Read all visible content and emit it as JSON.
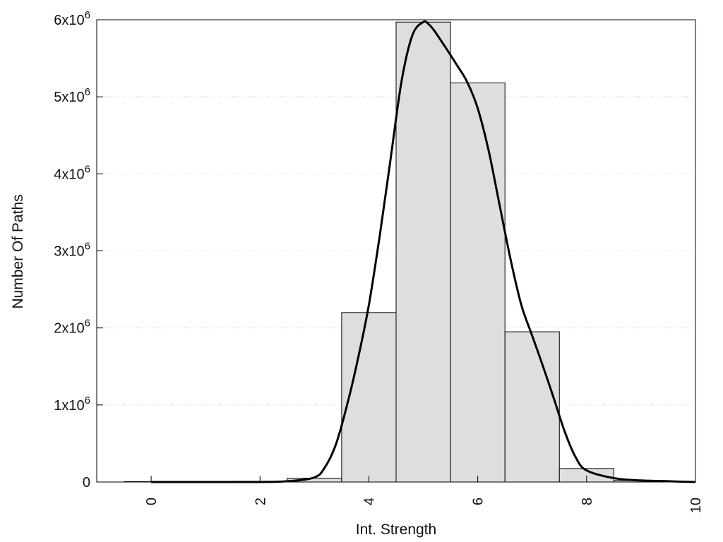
{
  "chart_data": {
    "type": "bar",
    "title": "",
    "xlabel": "Int. Strength",
    "ylabel": "Number Of Paths",
    "xlim": [
      -1,
      10
    ],
    "ylim": [
      0,
      6000000
    ],
    "grid": "y-dotted",
    "x_ticks": [
      {
        "value": 0,
        "label": "0"
      },
      {
        "value": 2,
        "label": "2"
      },
      {
        "value": 4,
        "label": "4"
      },
      {
        "value": 6,
        "label": "6"
      },
      {
        "value": 8,
        "label": "8"
      },
      {
        "value": 10,
        "label": "10"
      }
    ],
    "y_ticks": [
      {
        "value": 0,
        "base": "0",
        "exp": ""
      },
      {
        "value": 1000000,
        "base": "1x10",
        "exp": "6"
      },
      {
        "value": 2000000,
        "base": "2x10",
        "exp": "6"
      },
      {
        "value": 3000000,
        "base": "3x10",
        "exp": "6"
      },
      {
        "value": 4000000,
        "base": "4x10",
        "exp": "6"
      },
      {
        "value": 5000000,
        "base": "5x10",
        "exp": "6"
      },
      {
        "value": 6000000,
        "base": "6x10",
        "exp": "6"
      }
    ],
    "bins": [
      {
        "x": 0,
        "value": 5000
      },
      {
        "x": 1,
        "value": 5000
      },
      {
        "x": 2,
        "value": 10000
      },
      {
        "x": 3,
        "value": 50000
      },
      {
        "x": 4,
        "value": 2200000
      },
      {
        "x": 5,
        "value": 5970000
      },
      {
        "x": 6,
        "value": 5180000
      },
      {
        "x": 7,
        "value": 1950000
      },
      {
        "x": 8,
        "value": 175000
      },
      {
        "x": 9,
        "value": 20000
      }
    ],
    "bin_width": 1,
    "bar_color": "#dedede",
    "curve": {
      "x": [
        0,
        1,
        2,
        2.5,
        3,
        3.2,
        3.4,
        3.6,
        3.8,
        4.0,
        4.2,
        4.4,
        4.6,
        4.8,
        5.0,
        5.1,
        5.2,
        5.4,
        5.6,
        5.8,
        6.0,
        6.2,
        6.4,
        6.6,
        6.8,
        7.0,
        7.2,
        7.4,
        7.6,
        7.8,
        8.0,
        8.5,
        9.0,
        9.5,
        10.0
      ],
      "y": [
        0,
        0,
        0,
        10000,
        60000,
        200000,
        500000,
        1000000,
        1600000,
        2300000,
        3200000,
        4200000,
        5200000,
        5800000,
        5970000,
        5940000,
        5860000,
        5650000,
        5430000,
        5200000,
        4850000,
        4300000,
        3600000,
        2900000,
        2300000,
        1900000,
        1500000,
        1080000,
        650000,
        320000,
        150000,
        50000,
        20000,
        10000,
        0
      ]
    },
    "curve_color": "#000000"
  }
}
